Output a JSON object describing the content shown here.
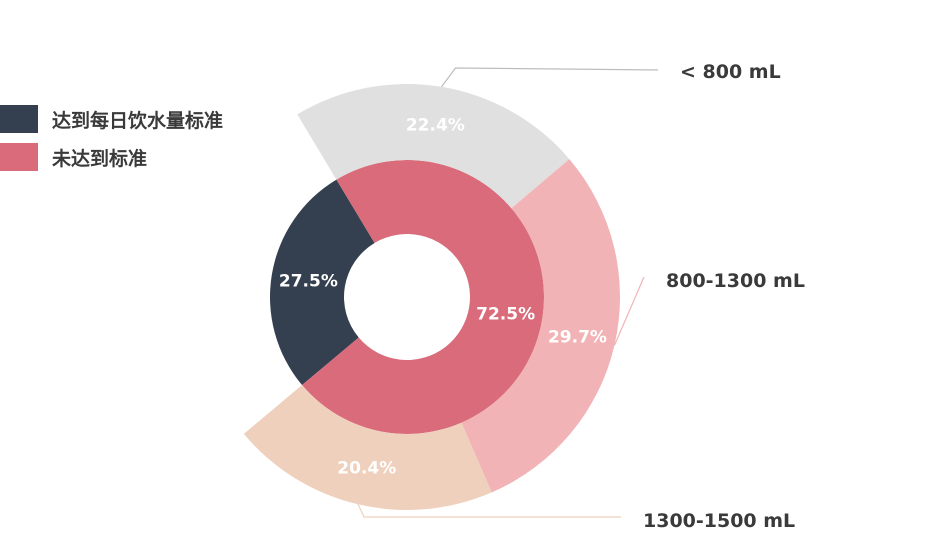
{
  "legend": {
    "items": [
      {
        "label": "达到每日饮水量标准",
        "color": "#34404f"
      },
      {
        "label": "未达到标准",
        "color": "#d96b7b"
      }
    ]
  },
  "chart_data": {
    "type": "donut",
    "inner_ring": {
      "slices": [
        {
          "name": "达到每日饮水量标准",
          "value": 27.5,
          "label": "27.5%",
          "color": "#34404f"
        },
        {
          "name": "未达到标准",
          "value": 72.5,
          "label": "72.5%",
          "color": "#d96b7b"
        }
      ]
    },
    "outer_ring": {
      "slices": [
        {
          "name": "< 800 mL",
          "value": 22.4,
          "label": "22.4%",
          "color": "#e0e0e0"
        },
        {
          "name": "800-1300 mL",
          "value": 29.7,
          "label": "29.7%",
          "color": "#f1b3b5"
        },
        {
          "name": "1300-1500 mL",
          "value": 20.4,
          "label": "20.4%",
          "color": "#efd0bc"
        }
      ]
    }
  }
}
